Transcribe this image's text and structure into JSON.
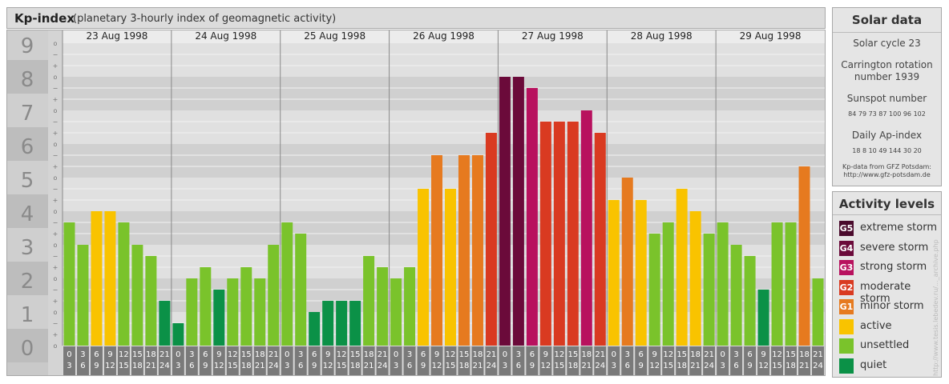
{
  "header": {
    "title": "Kp-index",
    "subtitle": "(planetary 3-hourly index of geomagnetic activity)"
  },
  "chart_data": {
    "type": "bar",
    "ylim": [
      0,
      9
    ],
    "yticks": [
      "0",
      "1",
      "2",
      "3",
      "4",
      "5",
      "6",
      "7",
      "8",
      "9"
    ],
    "minor_marks": [
      "+",
      "o",
      "−"
    ],
    "days": [
      "23 Aug 1998",
      "24 Aug 1998",
      "25 Aug 1998",
      "26 Aug 1998",
      "27 Aug 1998",
      "28 Aug 1998",
      "29 Aug 1998"
    ],
    "hour_labels_top": [
      "0",
      "3",
      "6",
      "9",
      "12",
      "15",
      "18",
      "21"
    ],
    "hour_labels_bottom": [
      "3",
      "6",
      "9",
      "12",
      "15",
      "18",
      "21",
      "24"
    ],
    "values": [
      [
        3.667,
        3.0,
        4.0,
        4.0,
        3.667,
        3.0,
        2.667,
        1.333
      ],
      [
        0.667,
        2.0,
        2.333,
        1.667,
        2.0,
        2.333,
        2.0,
        3.0
      ],
      [
        3.667,
        3.333,
        1.0,
        1.333,
        1.333,
        1.333,
        2.667,
        2.333
      ],
      [
        2.0,
        2.333,
        4.667,
        5.667,
        4.667,
        5.667,
        5.667,
        6.333
      ],
      [
        8.0,
        8.0,
        7.667,
        6.667,
        6.667,
        6.667,
        7.0,
        6.333
      ],
      [
        4.333,
        5.0,
        4.333,
        3.333,
        3.667,
        4.667,
        4.0,
        3.333
      ],
      [
        3.667,
        3.0,
        2.667,
        1.667,
        3.667,
        3.667,
        5.333,
        2.0
      ]
    ],
    "colors": {
      "G5": "#4a0a2c",
      "G4": "#6b0a3a",
      "G3": "#b8115e",
      "G2": "#d93a21",
      "G1": "#e67a1f",
      "active": "#f9c300",
      "unsettled": "#7ac32b",
      "quiet": "#0b9147"
    },
    "grid": true
  },
  "solar": {
    "title": "Solar data",
    "cycle": "Solar cycle 23",
    "carrington_1": "Carrington rotation",
    "carrington_2": "number 1939",
    "sunspot_title": "Sunspot number",
    "sunspots": "84  79  73  87  100  96  102",
    "ap_title": "Daily Ap-index",
    "ap_values": "18   8   10   49  144  30   20",
    "source_1": "Kp-data from GFZ Potsdam:",
    "source_2": "http://www.gfz-potsdam.de"
  },
  "legend": {
    "title": "Activity levels",
    "items": [
      {
        "code": "G5",
        "label": "extreme storm",
        "color": "#4a0a2c"
      },
      {
        "code": "G4",
        "label": "severe storm",
        "color": "#6b0a3a"
      },
      {
        "code": "G3",
        "label": "strong storm",
        "color": "#b8115e"
      },
      {
        "code": "G2",
        "label": "moderate storm",
        "color": "#d93a21"
      },
      {
        "code": "G1",
        "label": "minor storm",
        "color": "#e67a1f"
      },
      {
        "code": "",
        "label": "active",
        "color": "#f9c300"
      },
      {
        "code": "",
        "label": "unsettled",
        "color": "#7ac32b"
      },
      {
        "code": "",
        "label": "quiet",
        "color": "#0b9147"
      }
    ]
  },
  "credit": "http://www.tesis.lebedev.ru/..._archive.php"
}
